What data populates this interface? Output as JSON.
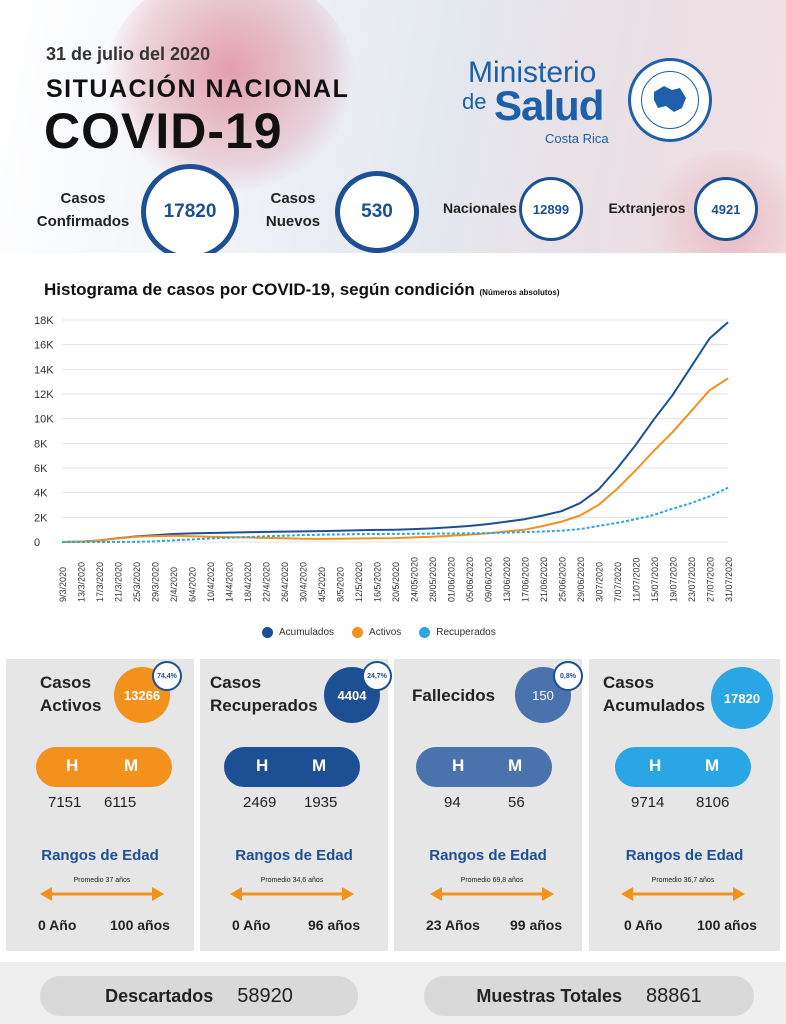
{
  "header": {
    "date": "31 de julio del 2020",
    "subtitle": "SITUACIÓN NACIONAL",
    "title": "COVID-19",
    "logo": {
      "line1": "Ministerio",
      "line2_prefix": "de",
      "line2_main": "Salud",
      "line3": "Costa Rica",
      "seal": "Ministerio de Salud Costa Rica seal"
    }
  },
  "stats": {
    "confirmados": {
      "label_line1": "Casos",
      "label_line2": "Confirmados",
      "value": "17820"
    },
    "nuevos": {
      "label_line1": "Casos",
      "label_line2": "Nuevos",
      "value": "530"
    },
    "nacionales": {
      "label": "Nacionales",
      "value": "12899"
    },
    "extranjeros": {
      "label": "Extranjeros",
      "value": "4921"
    }
  },
  "chart_title": {
    "main": "Histograma de casos por COVID-19, según condición",
    "note": "(Números absolutos)"
  },
  "chart_data": {
    "type": "line",
    "ylim": [
      0,
      18000
    ],
    "y_ticks": [
      "0",
      "2K",
      "4K",
      "6K",
      "8K",
      "10K",
      "12K",
      "14K",
      "16K",
      "18K"
    ],
    "x_tick_labels": [
      "9/3/2020",
      "13/3/2020",
      "17/3/2020",
      "21/3/2020",
      "25/3/2020",
      "29/3/2020",
      "2/4/2020",
      "6/4/2020",
      "10/4/2020",
      "14/4/2020",
      "18/4/2020",
      "22/4/2020",
      "26/4/2020",
      "30/4/2020",
      "4/5/2020",
      "8/5/2020",
      "12/5/2020",
      "16/5/2020",
      "20/5/2020",
      "24/05/2020",
      "28/05/2020",
      "01/06/2020",
      "05/06/2020",
      "09/06/2020",
      "13/06/2020",
      "17/06/2020",
      "21/06/2020",
      "25/06/2020",
      "29/06/2020",
      "3/07/2020",
      "7/07/2020",
      "11/07/2020",
      "15/07/2020",
      "19/07/2020",
      "23/07/2020",
      "27/07/2020",
      "31/07/2020"
    ],
    "series": [
      {
        "name": "Acumulados",
        "color": "#1c4f94",
        "style": "solid",
        "values": [
          0,
          30,
          120,
          300,
          450,
          550,
          650,
          700,
          730,
          760,
          790,
          820,
          840,
          860,
          880,
          920,
          950,
          980,
          1000,
          1050,
          1100,
          1200,
          1300,
          1450,
          1650,
          1850,
          2150,
          2500,
          3150,
          4250,
          5950,
          7850,
          9950,
          11900,
          14200,
          16500,
          17820
        ]
      },
      {
        "name": "Activos",
        "color": "#f2921c",
        "style": "solid",
        "values": [
          0,
          30,
          115,
          280,
          420,
          480,
          500,
          470,
          430,
          400,
          370,
          330,
          300,
          270,
          250,
          260,
          280,
          300,
          320,
          370,
          420,
          500,
          600,
          700,
          850,
          1000,
          1300,
          1650,
          2150,
          3000,
          4300,
          5800,
          7400,
          8900,
          10600,
          12300,
          13266
        ]
      },
      {
        "name": "Recuperados",
        "color": "#29a6e3",
        "style": "dashed",
        "values": [
          0,
          0,
          0,
          5,
          15,
          50,
          130,
          210,
          280,
          350,
          400,
          460,
          510,
          560,
          590,
          620,
          640,
          650,
          660,
          670,
          680,
          690,
          700,
          720,
          760,
          800,
          850,
          920,
          1050,
          1300,
          1550,
          1850,
          2200,
          2700,
          3150,
          3700,
          4404
        ]
      }
    ],
    "legend_position": "bottom-center",
    "grid": true
  },
  "panels": [
    {
      "title_line1": "Casos",
      "title_line2": "Activos",
      "value": "13266",
      "pct": "74,4%",
      "color": "#f2921c",
      "h_label": "H",
      "m_label": "M",
      "h_value": "7151",
      "m_value": "6115",
      "rangos_label": "Rangos de Edad",
      "promedio": "Promedio 37 años",
      "age_min": "0 Año",
      "age_max": "100 años"
    },
    {
      "title_line1": "Casos",
      "title_line2": "Recuperados",
      "value": "4404",
      "pct": "24,7%",
      "color": "#1c4f94",
      "h_label": "H",
      "m_label": "M",
      "h_value": "2469",
      "m_value": "1935",
      "rangos_label": "Rangos de Edad",
      "promedio": "Promedio 34,6 años",
      "age_min": "0 Año",
      "age_max": "96 años"
    },
    {
      "title_line1": "Fallecidos",
      "title_line2": "",
      "value": "150",
      "pct": "0,8%",
      "color": "#4a72ad",
      "h_label": "H",
      "m_label": "M",
      "h_value": "94",
      "m_value": "56",
      "rangos_label": "Rangos de Edad",
      "promedio": "Promedio 69,8 años",
      "age_min": "23 Años",
      "age_max": "99 años"
    },
    {
      "title_line1": "Casos",
      "title_line2": "Acumulados",
      "value": "17820",
      "pct": "",
      "color": "#29a6e3",
      "h_label": "H",
      "m_label": "M",
      "h_value": "9714",
      "m_value": "8106",
      "rangos_label": "Rangos de Edad",
      "promedio": "Promedio 36,7 años",
      "age_min": "0 Año",
      "age_max": "100 años"
    }
  ],
  "footer": {
    "descartados_label": "Descartados",
    "descartados_value": "58920",
    "muestras_label": "Muestras Totales",
    "muestras_value": "88861"
  }
}
